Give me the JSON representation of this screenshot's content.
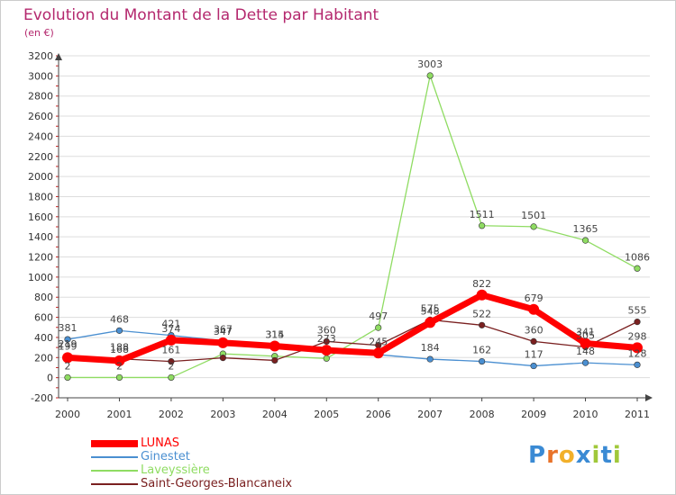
{
  "title": "Evolution du Montant de la Dette par Habitant",
  "subtitle": "(en €)",
  "logo": {
    "text": "Proxiti",
    "letter_colors": [
      "#3a8ad4",
      "#e8732a",
      "#f2b02a",
      "#3a8ad4",
      "#a0c83a",
      "#3a8ad4",
      "#a0c83a"
    ]
  },
  "chart_data": {
    "type": "line",
    "title": "Evolution du Montant de la Dette par Habitant",
    "subtitle": "(en €)",
    "xlabel": "",
    "ylabel": "",
    "ylim": [
      -200,
      3200
    ],
    "y_ticks": [
      "-200",
      "0",
      "200",
      "400",
      "600",
      "800",
      "1000",
      "1200",
      "1400",
      "1600",
      "1800",
      "2000",
      "2200",
      "2400",
      "2600",
      "2800",
      "3000",
      "3200"
    ],
    "categories": [
      "2000",
      "2001",
      "2002",
      "2003",
      "2004",
      "2005",
      "2006",
      "2007",
      "2008",
      "2009",
      "2010",
      "2011"
    ],
    "grid": "horizontal",
    "legend_position": "bottom-left",
    "series": [
      {
        "name": "LUNAS",
        "color": "#ff0000",
        "values": [
          199,
          168,
          374,
          347,
          314,
          273,
          245,
          548,
          822,
          679,
          341,
          298
        ],
        "labels": [
          "199",
          "168",
          "374",
          "347",
          "314",
          "273",
          "245",
          "548",
          "822",
          "679",
          "341",
          "298"
        ]
      },
      {
        "name": "Ginestet",
        "color": "#4a8fd1",
        "values": [
          381,
          468,
          421,
          367,
          315,
          279,
          229,
          184,
          162,
          117,
          148,
          128
        ],
        "labels": [
          "381",
          "468",
          "421",
          "367",
          "315",
          "",
          "",
          "184",
          "162",
          "117",
          "148",
          "128"
        ]
      },
      {
        "name": "Laveyssière",
        "color": "#8fdc62",
        "values": [
          2,
          2,
          2,
          237,
          214,
          191,
          497,
          3003,
          1511,
          1501,
          1365,
          1086
        ],
        "labels": [
          "2",
          "2",
          "2",
          "",
          "",
          "",
          "497",
          "3003",
          "1511",
          "1501",
          "1365",
          "1086"
        ]
      },
      {
        "name": "Saint-Georges-Blancaneix",
        "color": "#7a2020",
        "values": [
          219,
          188,
          161,
          197,
          172,
          360,
          322,
          575,
          522,
          360,
          305,
          555
        ],
        "labels": [
          "219",
          "188",
          "161",
          "",
          "",
          "360",
          "",
          "575",
          "522",
          "360",
          "305",
          "555"
        ]
      }
    ]
  }
}
